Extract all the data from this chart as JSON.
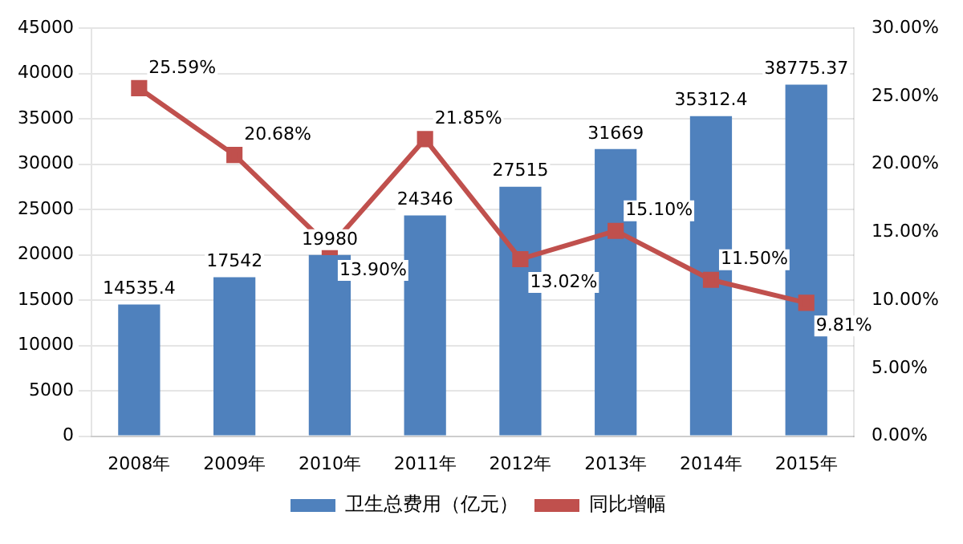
{
  "chart_data": {
    "type": "bar",
    "categories": [
      "2008年",
      "2009年",
      "2010年",
      "2011年",
      "2012年",
      "2013年",
      "2014年",
      "2015年"
    ],
    "series": [
      {
        "name": "卫生总费用（亿元）",
        "color": "#4f81bd",
        "values": [
          14535.4,
          17542,
          19980,
          24346,
          27515,
          31669,
          35312.4,
          38775.37
        ],
        "value_labels": [
          "14535.4",
          "17542",
          "19980",
          "24346",
          "27515",
          "31669",
          "35312.4",
          "38775.37"
        ]
      },
      {
        "name": "同比增幅",
        "type": "line",
        "axis": "y2",
        "color": "#c0504d",
        "marker": "square",
        "values": [
          25.59,
          20.68,
          13.9,
          21.85,
          13.02,
          15.1,
          11.5,
          9.81
        ],
        "value_labels": [
          "25.59%",
          "20.68%",
          "13.90%",
          "21.85%",
          "13.02%",
          "15.10%",
          "11.50%",
          "9.81%"
        ]
      }
    ],
    "ylim": [
      0,
      45000
    ],
    "yticks": [
      0,
      5000,
      10000,
      15000,
      20000,
      25000,
      30000,
      35000,
      40000,
      45000
    ],
    "y2lim": [
      0,
      30
    ],
    "y2ticks": [
      {
        "value": 0,
        "label": "0.00%"
      },
      {
        "value": 5,
        "label": "5.00%"
      },
      {
        "value": 10,
        "label": "10.00%"
      },
      {
        "value": 15,
        "label": "15.00%"
      },
      {
        "value": 20,
        "label": "20.00%"
      },
      {
        "value": 25,
        "label": "25.00%"
      },
      {
        "value": 30,
        "label": "30.00%"
      }
    ],
    "grid": "y",
    "legend": "bottom"
  }
}
